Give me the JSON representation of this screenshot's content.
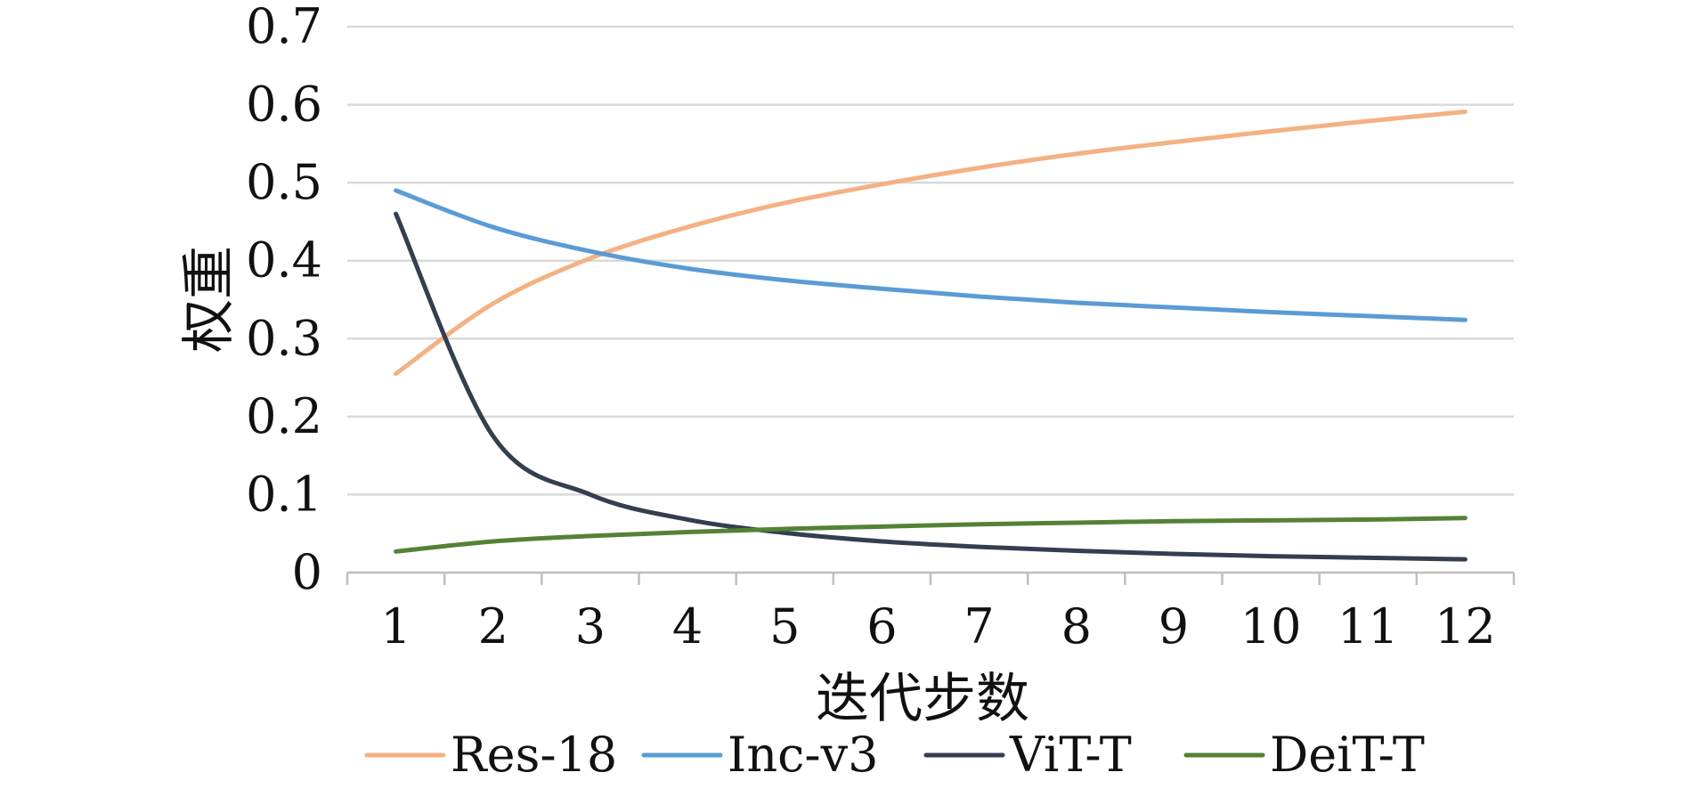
{
  "chart_data": {
    "type": "line",
    "title": "",
    "xlabel": "迭代步数",
    "ylabel": "权重",
    "categories": [
      "1",
      "2",
      "3",
      "4",
      "5",
      "6",
      "7",
      "8",
      "9",
      "10",
      "11",
      "12"
    ],
    "x": [
      1,
      2,
      3,
      4,
      5,
      6,
      7,
      8,
      9,
      10,
      11,
      12
    ],
    "ylim": [
      0,
      0.7
    ],
    "yticks": [
      "0",
      "0.1",
      "0.2",
      "0.3",
      "0.4",
      "0.5",
      "0.6",
      "0.7"
    ],
    "grid": true,
    "legend_position": "bottom",
    "series": [
      {
        "name": "Res-18",
        "color": "#F4B183",
        "values": [
          0.255,
          0.345,
          0.403,
          0.443,
          0.474,
          0.498,
          0.519,
          0.537,
          0.552,
          0.566,
          0.579,
          0.591
        ]
      },
      {
        "name": "Inc-v3",
        "color": "#5B9BD5",
        "values": [
          0.49,
          0.443,
          0.412,
          0.39,
          0.375,
          0.364,
          0.354,
          0.346,
          0.34,
          0.334,
          0.329,
          0.324
        ]
      },
      {
        "name": "ViT-T",
        "color": "#333F50",
        "values": [
          0.46,
          0.175,
          0.1,
          0.068,
          0.051,
          0.04,
          0.033,
          0.028,
          0.024,
          0.021,
          0.019,
          0.017
        ]
      },
      {
        "name": "DeiT-T",
        "color": "#548235",
        "values": [
          0.027,
          0.04,
          0.047,
          0.052,
          0.056,
          0.059,
          0.062,
          0.064,
          0.066,
          0.067,
          0.068,
          0.07
        ]
      }
    ]
  }
}
